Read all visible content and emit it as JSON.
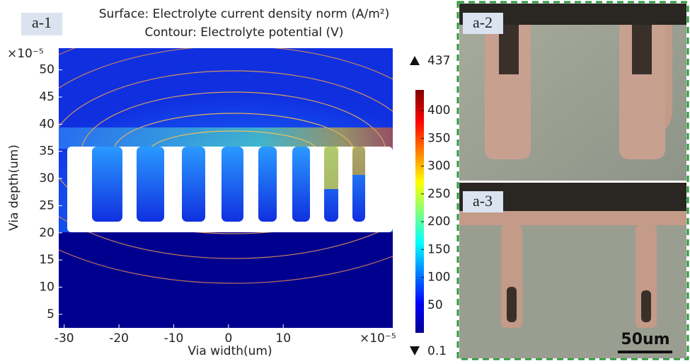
{
  "chart_data": {
    "type": "heatmap",
    "panel_label": "a-1",
    "title": "Surface: Electrolyte current density norm (A/m²)",
    "subtitle": "Contour: Electrolyte potential (V)",
    "x_label": "Via width(um)",
    "y_label": "Via depth(um)",
    "x_scale_label": "×10⁻⁵",
    "y_scale_label": "×10⁻⁵",
    "xlim": [
      -31,
      30
    ],
    "xticks": [
      -30,
      -20,
      -10,
      0,
      10
    ],
    "ylim": [
      2.5,
      54
    ],
    "yticks": [
      5,
      10,
      15,
      20,
      25,
      30,
      35,
      40,
      45,
      50
    ],
    "colorbar": {
      "lim": [
        0.1,
        437
      ],
      "ticks": [
        50,
        100,
        150,
        200,
        250,
        300,
        350,
        400
      ],
      "max": 437,
      "min": 0.1
    }
  },
  "photos": [
    {
      "label": "a-2"
    },
    {
      "label": "a-3",
      "scale_bar": "50um"
    }
  ]
}
